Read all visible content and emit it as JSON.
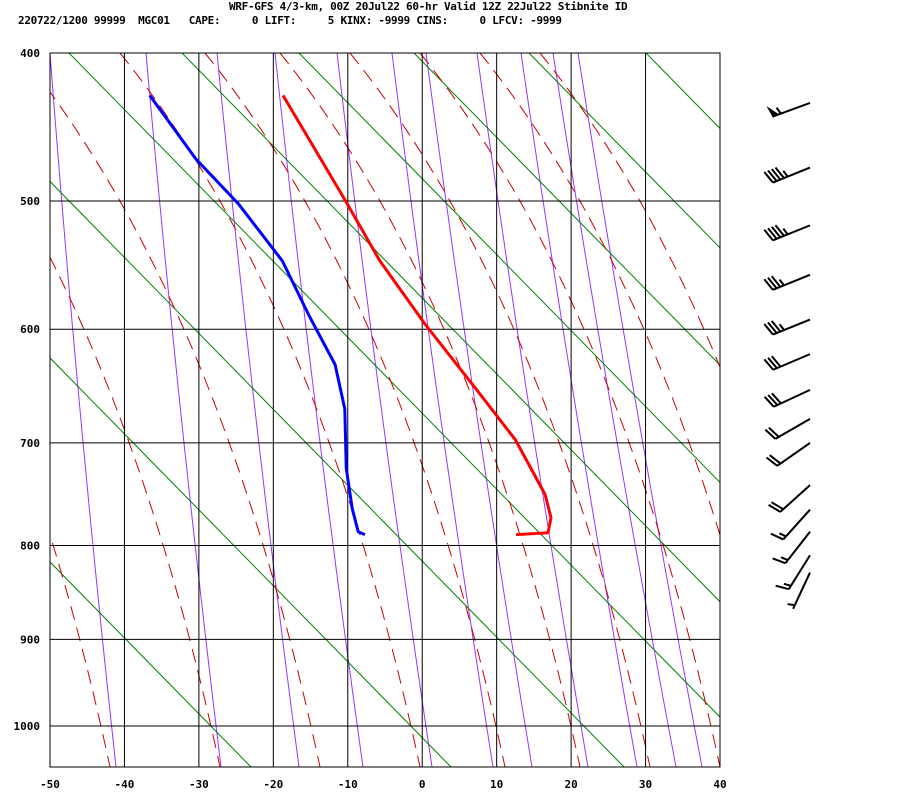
{
  "header": {
    "title": "WRF-GFS 4/3-km, 00Z 20Jul22 60-hr Valid 12Z 22Jul22 Stibnite ID",
    "info": "220722/1200 99999  MGC01   CAPE:     0 LIFT:     5 KINX: -9999 CINS:     0 LFCV: -9999"
  },
  "chart_data": {
    "type": "line",
    "xlim": [
      -50,
      40
    ],
    "ylim": [
      400,
      1050
    ],
    "y_scale": "pressure (inverted)",
    "x_ticks": [
      "-50",
      "-40",
      "-30",
      "-20",
      "-10",
      "0",
      "10",
      "20",
      "30",
      "40"
    ],
    "y_ticks": [
      "400",
      "500",
      "600",
      "700",
      "800",
      "900",
      "1000"
    ],
    "grid": true,
    "series": [
      {
        "color": "#ff0000",
        "points": [
          [
            427,
            -18.7
          ],
          [
            499,
            -10.4
          ],
          [
            545,
            -5.7
          ],
          [
            596,
            0.4
          ],
          [
            656,
            7.8
          ],
          [
            697,
            12.5
          ],
          [
            749,
            16.5
          ],
          [
            772,
            17.3
          ],
          [
            787,
            16.9
          ],
          [
            789,
            12.6
          ]
        ]
      },
      {
        "color": "#0000ff",
        "points": [
          [
            427,
            -36.6
          ],
          [
            470,
            -30.4
          ],
          [
            502,
            -24.7
          ],
          [
            545,
            -18.8
          ],
          [
            590,
            -15.1
          ],
          [
            630,
            -11.7
          ],
          [
            669,
            -10.4
          ],
          [
            724,
            -10.2
          ],
          [
            763,
            -9.4
          ],
          [
            786,
            -8.6
          ],
          [
            789,
            -7.7
          ]
        ]
      }
    ],
    "wind_barbs": [
      {
        "p": 432,
        "dir": 250,
        "kt": 55
      },
      {
        "p": 476,
        "dir": 248,
        "kt": 45
      },
      {
        "p": 518,
        "dir": 248,
        "kt": 45
      },
      {
        "p": 556,
        "dir": 248,
        "kt": 35
      },
      {
        "p": 592,
        "dir": 248,
        "kt": 35
      },
      {
        "p": 621,
        "dir": 247,
        "kt": 30
      },
      {
        "p": 652,
        "dir": 245,
        "kt": 30
      },
      {
        "p": 678,
        "dir": 240,
        "kt": 20
      },
      {
        "p": 700,
        "dir": 235,
        "kt": 20
      },
      {
        "p": 740,
        "dir": 228,
        "kt": 20
      },
      {
        "p": 764,
        "dir": 222,
        "kt": 15
      },
      {
        "p": 786,
        "dir": 218,
        "kt": 15
      },
      {
        "p": 810,
        "dir": 212,
        "kt": 15
      },
      {
        "p": 828,
        "dir": 205,
        "kt": 5
      }
    ],
    "colors": {
      "isotherm_grid": "#000000",
      "dry_adiabat": "#008000",
      "moist_adiabat": "#cc0000",
      "mixing_ratio": "#9933ff"
    }
  }
}
